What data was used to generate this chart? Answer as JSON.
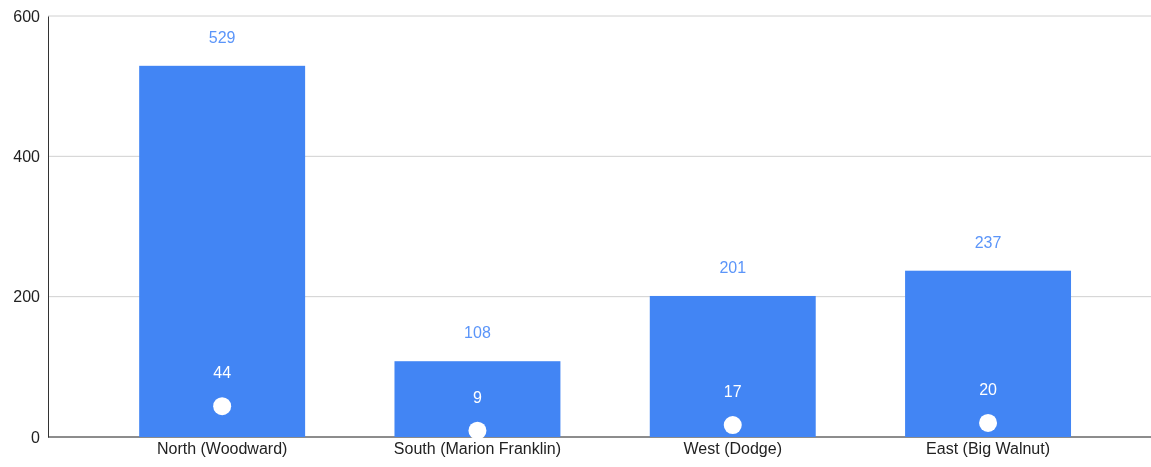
{
  "chart_data": {
    "type": "bar",
    "categories": [
      "North (Woodward)",
      "South (Marion Franklin)",
      "West (Dodge)",
      "East (Big Walnut)"
    ],
    "series": [
      {
        "color": "#4285f4",
        "values": [
          529,
          108,
          201,
          237
        ]
      },
      {
        "type": "scatter",
        "color": "#ffffff",
        "x": [
          "North (Woodward)",
          "South (Marion Franklin)",
          "West (Dodge)",
          "East (Big Walnut)"
        ],
        "values": [
          44,
          9,
          17,
          20
        ]
      }
    ],
    "ylim": [
      0,
      600
    ],
    "yticks": [
      0,
      200,
      400,
      600
    ],
    "grid": "y",
    "data_labels": true,
    "marker": "circle"
  }
}
